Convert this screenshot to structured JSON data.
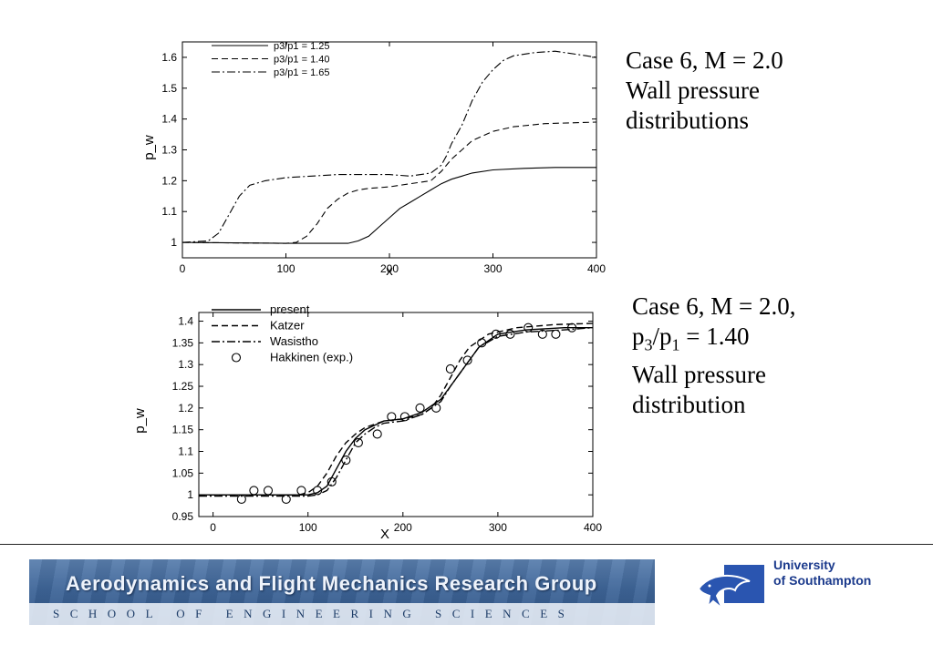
{
  "chart_data": [
    {
      "type": "line",
      "title": "",
      "xlabel": "x",
      "ylabel": "p_w",
      "xlim": [
        0,
        400
      ],
      "ylim": [
        0.95,
        1.65
      ],
      "xticks": [
        "0",
        "100",
        "200",
        "300",
        "400"
      ],
      "yticks": [
        "1",
        "1.1",
        "1.2",
        "1.3",
        "1.4",
        "1.5",
        "1.6"
      ],
      "grid": false,
      "legend_position": "top-left",
      "series": [
        {
          "name": "p3/p1 = 1.25",
          "style": "solid",
          "x": [
            0,
            100,
            160,
            170,
            180,
            190,
            200,
            210,
            220,
            230,
            240,
            250,
            260,
            270,
            280,
            300,
            330,
            360,
            400
          ],
          "y": [
            1.0,
            0.997,
            0.997,
            1.005,
            1.02,
            1.05,
            1.08,
            1.11,
            1.13,
            1.15,
            1.17,
            1.19,
            1.205,
            1.215,
            1.225,
            1.235,
            1.24,
            1.243,
            1.243
          ]
        },
        {
          "name": "p3/p1 = 1.40",
          "style": "dashed",
          "x": [
            0,
            100,
            110,
            120,
            130,
            140,
            150,
            160,
            170,
            180,
            200,
            220,
            240,
            250,
            260,
            270,
            280,
            300,
            320,
            350,
            400
          ],
          "y": [
            1.0,
            0.997,
            1.0,
            1.02,
            1.06,
            1.11,
            1.14,
            1.16,
            1.17,
            1.175,
            1.18,
            1.19,
            1.2,
            1.23,
            1.27,
            1.3,
            1.33,
            1.36,
            1.375,
            1.385,
            1.39
          ]
        },
        {
          "name": "p3/p1 = 1.65",
          "style": "dashdot",
          "x": [
            0,
            25,
            35,
            45,
            55,
            65,
            80,
            100,
            150,
            200,
            220,
            240,
            250,
            255,
            260,
            270,
            280,
            290,
            300,
            310,
            320,
            340,
            360,
            380,
            400
          ],
          "y": [
            1.0,
            1.005,
            1.03,
            1.09,
            1.15,
            1.185,
            1.2,
            1.21,
            1.22,
            1.22,
            1.215,
            1.225,
            1.25,
            1.28,
            1.32,
            1.38,
            1.46,
            1.52,
            1.56,
            1.59,
            1.605,
            1.615,
            1.62,
            1.61,
            1.6
          ]
        }
      ]
    },
    {
      "type": "line",
      "title": "",
      "xlabel": "X",
      "ylabel": "p_w",
      "xlim": [
        -15,
        400
      ],
      "ylim": [
        0.95,
        1.42
      ],
      "xticks": [
        "0",
        "100",
        "200",
        "300",
        "400"
      ],
      "yticks": [
        "0.95",
        "1",
        "1.05",
        "1.1",
        "1.15",
        "1.2",
        "1.25",
        "1.3",
        "1.35",
        "1.4"
      ],
      "grid": false,
      "legend_position": "top-left",
      "series": [
        {
          "name": "present",
          "style": "solid",
          "x": [
            -15,
            0,
            100,
            110,
            120,
            130,
            140,
            150,
            160,
            170,
            180,
            200,
            220,
            240,
            250,
            260,
            270,
            280,
            300,
            330,
            370,
            400
          ],
          "y": [
            1.0,
            1.0,
            1.0,
            1.005,
            1.02,
            1.06,
            1.1,
            1.13,
            1.15,
            1.16,
            1.17,
            1.175,
            1.19,
            1.22,
            1.25,
            1.28,
            1.31,
            1.34,
            1.37,
            1.38,
            1.385,
            1.385
          ]
        },
        {
          "name": "Katzer",
          "style": "dashed",
          "x": [
            -15,
            0,
            90,
            100,
            110,
            120,
            130,
            140,
            150,
            160,
            180,
            200,
            220,
            230,
            240,
            250,
            260,
            270,
            290,
            320,
            360,
            400
          ],
          "y": [
            1.0,
            1.0,
            1.0,
            1.005,
            1.02,
            1.05,
            1.09,
            1.12,
            1.14,
            1.155,
            1.17,
            1.175,
            1.185,
            1.2,
            1.23,
            1.27,
            1.31,
            1.34,
            1.37,
            1.385,
            1.392,
            1.395
          ]
        },
        {
          "name": "Wasistho",
          "style": "dashdot",
          "x": [
            -15,
            0,
            100,
            110,
            120,
            130,
            140,
            150,
            160,
            170,
            180,
            200,
            220,
            240,
            250,
            260,
            270,
            280,
            300,
            330,
            370,
            400
          ],
          "y": [
            0.997,
            0.997,
            0.997,
            1.0,
            1.01,
            1.04,
            1.08,
            1.12,
            1.14,
            1.155,
            1.165,
            1.17,
            1.185,
            1.215,
            1.25,
            1.28,
            1.31,
            1.34,
            1.365,
            1.375,
            1.38,
            1.385
          ]
        },
        {
          "name": "Hakkinen (exp.)",
          "style": "markers",
          "x": [
            30,
            43,
            58,
            77,
            93,
            110,
            125,
            140,
            153,
            173,
            188,
            202,
            218,
            235,
            250,
            268,
            283,
            298,
            313,
            332,
            347,
            361,
            378
          ],
          "y": [
            0.99,
            1.01,
            1.01,
            0.99,
            1.01,
            1.01,
            1.03,
            1.08,
            1.12,
            1.14,
            1.18,
            1.18,
            1.2,
            1.2,
            1.29,
            1.31,
            1.35,
            1.37,
            1.37,
            1.385,
            1.37,
            1.37,
            1.385
          ]
        }
      ]
    }
  ],
  "captions": {
    "top": {
      "line1": "Case 6, M = 2.0",
      "line2": "Wall pressure",
      "line3": "distributions"
    },
    "bottom": {
      "line1": "Case 6, M = 2.0,",
      "ratio_p3": "p",
      "ratio_sub3": "3",
      "ratio_slash": "/p",
      "ratio_sub1": "1",
      "ratio_value": " = 1.40",
      "line3": "Wall pressure",
      "line4": "distribution"
    }
  },
  "banner": {
    "title": "Aerodynamics and Flight Mechanics Research Group",
    "subtitle": "SCHOOL OF ENGINEERING SCIENCES",
    "colors": {
      "top": "#5a7fae",
      "bottom": "#2e5385"
    }
  },
  "logo": {
    "line1": "University",
    "line2": "of Southampton",
    "icon": "dolphin-icon",
    "color": "#1b3a8c"
  }
}
